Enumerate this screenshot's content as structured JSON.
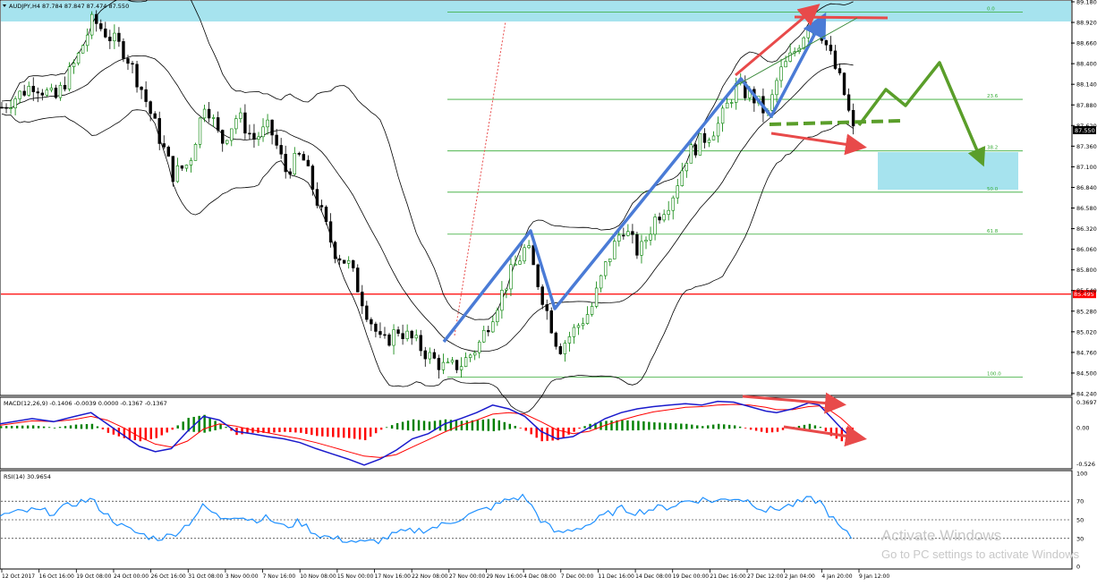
{
  "chart_data": [
    {
      "type": "candlestick",
      "header_text": "AUDJPY,H4  87.784 87.847 87.474 87.550",
      "symbol": "AUDJPY",
      "timeframe": "H4",
      "ohlc": {
        "open": 87.784,
        "high": 87.847,
        "low": 87.474,
        "close": 87.55
      },
      "current_price": "87.550",
      "ylim": [
        84.24,
        89.18
      ],
      "price_ticks": [
        "89.180",
        "88.920",
        "88.660",
        "88.400",
        "88.140",
        "87.880",
        "87.620",
        "87.360",
        "87.100",
        "86.840",
        "86.580",
        "86.320",
        "86.060",
        "85.800",
        "85.540",
        "85.280",
        "85.020",
        "84.760",
        "84.500",
        "84.240"
      ],
      "horizontal_level": {
        "value": 85.495,
        "label": "85.495",
        "color": "#ff0000"
      },
      "fibonacci": {
        "levels": [
          {
            "label": "0.0",
            "price": 89.05
          },
          {
            "label": "23.6",
            "price": 87.95
          },
          {
            "label": "38.2",
            "price": 87.3
          },
          {
            "label": "50.0",
            "price": 86.78
          },
          {
            "label": "61.8",
            "price": 86.25
          },
          {
            "label": "100.0",
            "price": 84.45
          }
        ],
        "color": "#33aa33"
      },
      "zones": [
        {
          "name": "resistance-band",
          "from": 89.02,
          "to": 89.18,
          "color": "#a6e3ee"
        },
        {
          "name": "target-zone",
          "from": 86.79,
          "to": 87.28,
          "color": "#a6e3ee"
        }
      ],
      "close_path": [
        [
          0,
          87.85
        ],
        [
          0.03,
          88.15
        ],
        [
          0.05,
          87.95
        ],
        [
          0.07,
          88.45
        ],
        [
          0.085,
          88.95
        ],
        [
          0.1,
          88.75
        ],
        [
          0.115,
          88.55
        ],
        [
          0.13,
          88.1
        ],
        [
          0.145,
          87.55
        ],
        [
          0.16,
          87.0
        ],
        [
          0.175,
          87.15
        ],
        [
          0.19,
          87.95
        ],
        [
          0.205,
          87.4
        ],
        [
          0.22,
          87.75
        ],
        [
          0.235,
          87.45
        ],
        [
          0.25,
          87.6
        ],
        [
          0.265,
          87.05
        ],
        [
          0.28,
          87.25
        ],
        [
          0.295,
          86.65
        ],
        [
          0.31,
          86.05
        ],
        [
          0.325,
          85.85
        ],
        [
          0.34,
          85.3
        ],
        [
          0.355,
          84.85
        ],
        [
          0.37,
          85.05
        ],
        [
          0.385,
          84.9
        ],
        [
          0.4,
          84.7
        ],
        [
          0.415,
          84.55
        ],
        [
          0.43,
          84.62
        ],
        [
          0.445,
          84.85
        ],
        [
          0.46,
          85.3
        ],
        [
          0.475,
          85.75
        ],
        [
          0.49,
          86.1
        ],
        [
          0.505,
          85.45
        ],
        [
          0.52,
          84.8
        ],
        [
          0.535,
          85.05
        ],
        [
          0.55,
          85.3
        ],
        [
          0.565,
          85.9
        ],
        [
          0.58,
          86.35
        ],
        [
          0.595,
          86.0
        ],
        [
          0.61,
          86.45
        ],
        [
          0.625,
          86.7
        ],
        [
          0.64,
          87.25
        ],
        [
          0.655,
          87.45
        ],
        [
          0.67,
          87.65
        ],
        [
          0.685,
          88.1
        ],
        [
          0.7,
          88.0
        ],
        [
          0.715,
          87.75
        ],
        [
          0.725,
          88.25
        ],
        [
          0.74,
          88.55
        ],
        [
          0.755,
          88.95
        ],
        [
          0.765,
          88.8
        ],
        [
          0.775,
          88.45
        ],
        [
          0.785,
          88.1
        ],
        [
          0.795,
          87.55
        ]
      ],
      "candle_count": 190
    },
    {
      "type": "macd",
      "header_text": "MACD(12,26,9) -0.1406 -0.0039 0.0000 -0.1367 -0.1367",
      "params": "12,26,9",
      "values": [
        -0.1406,
        -0.0039,
        0.0,
        -0.1367,
        -0.1367
      ],
      "ylim": [
        -0.526,
        0.3697
      ],
      "ticks": [
        "0.3697",
        "0.00",
        "-0.526"
      ],
      "main_path": [
        [
          0,
          0.05
        ],
        [
          0.03,
          0.12
        ],
        [
          0.05,
          0.08
        ],
        [
          0.07,
          0.15
        ],
        [
          0.085,
          0.2
        ],
        [
          0.1,
          0.05
        ],
        [
          0.115,
          -0.1
        ],
        [
          0.13,
          -0.25
        ],
        [
          0.145,
          -0.32
        ],
        [
          0.16,
          -0.28
        ],
        [
          0.175,
          -0.05
        ],
        [
          0.19,
          0.15
        ],
        [
          0.205,
          0.1
        ],
        [
          0.22,
          -0.05
        ],
        [
          0.235,
          -0.08
        ],
        [
          0.25,
          -0.12
        ],
        [
          0.265,
          -0.15
        ],
        [
          0.28,
          -0.2
        ],
        [
          0.295,
          -0.28
        ],
        [
          0.31,
          -0.35
        ],
        [
          0.325,
          -0.42
        ],
        [
          0.34,
          -0.5
        ],
        [
          0.355,
          -0.42
        ],
        [
          0.37,
          -0.3
        ],
        [
          0.385,
          -0.15
        ],
        [
          0.4,
          -0.08
        ],
        [
          0.415,
          0.05
        ],
        [
          0.43,
          0.12
        ],
        [
          0.445,
          0.2
        ],
        [
          0.46,
          0.3
        ],
        [
          0.475,
          0.25
        ],
        [
          0.49,
          0.15
        ],
        [
          0.505,
          -0.05
        ],
        [
          0.52,
          -0.15
        ],
        [
          0.535,
          -0.12
        ],
        [
          0.55,
          0.0
        ],
        [
          0.565,
          0.12
        ],
        [
          0.58,
          0.2
        ],
        [
          0.595,
          0.25
        ],
        [
          0.61,
          0.28
        ],
        [
          0.625,
          0.3
        ],
        [
          0.64,
          0.32
        ],
        [
          0.655,
          0.3
        ],
        [
          0.67,
          0.35
        ],
        [
          0.685,
          0.34
        ],
        [
          0.7,
          0.28
        ],
        [
          0.715,
          0.22
        ],
        [
          0.725,
          0.2
        ],
        [
          0.74,
          0.25
        ],
        [
          0.755,
          0.33
        ],
        [
          0.765,
          0.3
        ],
        [
          0.775,
          0.15
        ],
        [
          0.785,
          0.0
        ],
        [
          0.795,
          -0.14
        ]
      ],
      "signal_path": [
        [
          0,
          0.03
        ],
        [
          0.03,
          0.09
        ],
        [
          0.05,
          0.08
        ],
        [
          0.07,
          0.11
        ],
        [
          0.085,
          0.15
        ],
        [
          0.1,
          0.1
        ],
        [
          0.115,
          0.0
        ],
        [
          0.13,
          -0.12
        ],
        [
          0.145,
          -0.22
        ],
        [
          0.16,
          -0.26
        ],
        [
          0.175,
          -0.18
        ],
        [
          0.19,
          -0.02
        ],
        [
          0.205,
          0.05
        ],
        [
          0.22,
          0.02
        ],
        [
          0.235,
          -0.03
        ],
        [
          0.25,
          -0.07
        ],
        [
          0.265,
          -0.11
        ],
        [
          0.28,
          -0.15
        ],
        [
          0.295,
          -0.2
        ],
        [
          0.31,
          -0.26
        ],
        [
          0.325,
          -0.32
        ],
        [
          0.34,
          -0.38
        ],
        [
          0.355,
          -0.4
        ],
        [
          0.37,
          -0.36
        ],
        [
          0.385,
          -0.26
        ],
        [
          0.4,
          -0.16
        ],
        [
          0.415,
          -0.06
        ],
        [
          0.43,
          0.03
        ],
        [
          0.445,
          0.1
        ],
        [
          0.46,
          0.18
        ],
        [
          0.475,
          0.2
        ],
        [
          0.49,
          0.18
        ],
        [
          0.505,
          0.08
        ],
        [
          0.52,
          -0.03
        ],
        [
          0.535,
          -0.08
        ],
        [
          0.55,
          -0.05
        ],
        [
          0.565,
          0.03
        ],
        [
          0.58,
          0.1
        ],
        [
          0.595,
          0.16
        ],
        [
          0.61,
          0.21
        ],
        [
          0.625,
          0.24
        ],
        [
          0.64,
          0.27
        ],
        [
          0.655,
          0.28
        ],
        [
          0.67,
          0.3
        ],
        [
          0.685,
          0.31
        ],
        [
          0.7,
          0.3
        ],
        [
          0.715,
          0.27
        ],
        [
          0.725,
          0.24
        ],
        [
          0.74,
          0.24
        ],
        [
          0.755,
          0.28
        ],
        [
          0.765,
          0.29
        ],
        [
          0.775,
          0.23
        ],
        [
          0.785,
          0.13
        ],
        [
          0.795,
          0.0
        ]
      ]
    },
    {
      "type": "rsi",
      "header_text": "RSI(14) 30.9654",
      "period": 14,
      "value": 30.9654,
      "ylim": [
        0,
        100
      ],
      "levels": [
        70,
        50,
        30
      ],
      "ticks": [
        "100",
        "70",
        "50",
        "30",
        "0"
      ],
      "path": [
        [
          0,
          55
        ],
        [
          0.03,
          60
        ],
        [
          0.05,
          58
        ],
        [
          0.07,
          68
        ],
        [
          0.085,
          72
        ],
        [
          0.1,
          55
        ],
        [
          0.115,
          42
        ],
        [
          0.13,
          35
        ],
        [
          0.145,
          30
        ],
        [
          0.16,
          33
        ],
        [
          0.175,
          45
        ],
        [
          0.19,
          65
        ],
        [
          0.205,
          52
        ],
        [
          0.22,
          55
        ],
        [
          0.235,
          50
        ],
        [
          0.25,
          52
        ],
        [
          0.265,
          42
        ],
        [
          0.28,
          48
        ],
        [
          0.295,
          35
        ],
        [
          0.31,
          30
        ],
        [
          0.325,
          28
        ],
        [
          0.34,
          25
        ],
        [
          0.355,
          28
        ],
        [
          0.37,
          35
        ],
        [
          0.385,
          38
        ],
        [
          0.4,
          40
        ],
        [
          0.415,
          45
        ],
        [
          0.43,
          52
        ],
        [
          0.445,
          58
        ],
        [
          0.46,
          64
        ],
        [
          0.475,
          72
        ],
        [
          0.49,
          75
        ],
        [
          0.505,
          50
        ],
        [
          0.52,
          35
        ],
        [
          0.535,
          40
        ],
        [
          0.55,
          45
        ],
        [
          0.565,
          55
        ],
        [
          0.58,
          62
        ],
        [
          0.595,
          58
        ],
        [
          0.61,
          62
        ],
        [
          0.625,
          64
        ],
        [
          0.64,
          70
        ],
        [
          0.655,
          72
        ],
        [
          0.67,
          70
        ],
        [
          0.685,
          74
        ],
        [
          0.7,
          70
        ],
        [
          0.715,
          60
        ],
        [
          0.725,
          62
        ],
        [
          0.74,
          66
        ],
        [
          0.755,
          72
        ],
        [
          0.765,
          70
        ],
        [
          0.775,
          55
        ],
        [
          0.785,
          40
        ],
        [
          0.795,
          31
        ]
      ]
    }
  ],
  "time_labels": [
    "12 Oct 2017",
    "16 Oct 16:00",
    "19 Oct 08:00",
    "24 Oct 00:00",
    "26 Oct 16:00",
    "31 Oct 08:00",
    "3 Nov 00:00",
    "7 Nov 16:00",
    "10 Nov 08:00",
    "15 Nov 00:00",
    "17 Nov 16:00",
    "22 Nov 08:00",
    "27 Nov 00:00",
    "29 Nov 16:00",
    "4 Dec 08:00",
    "7 Dec 00:00",
    "11 Dec 16:00",
    "14 Dec 08:00",
    "19 Dec 00:00",
    "21 Dec 16:00",
    "27 Dec 12:00",
    "2 Jan 04:00",
    "4 Jan 20:00",
    "9 Jan 12:00"
  ],
  "colors": {
    "bull_candle": "#008000",
    "bear_candle": "#000000",
    "macd_main": "#1a1acc",
    "macd_signal": "#ff0000",
    "macd_hist_up": "#008000",
    "macd_hist_down": "#ff0000",
    "rsi_line": "#1e90ff",
    "annotation_blue": "#4a7bd6",
    "annotation_red": "#e84a4a",
    "annotation_green": "#5a9e2a",
    "bollinger": "#000000"
  },
  "watermark": {
    "title": "Activate Windows",
    "subtitle": "Go to PC settings to activate Windows"
  }
}
